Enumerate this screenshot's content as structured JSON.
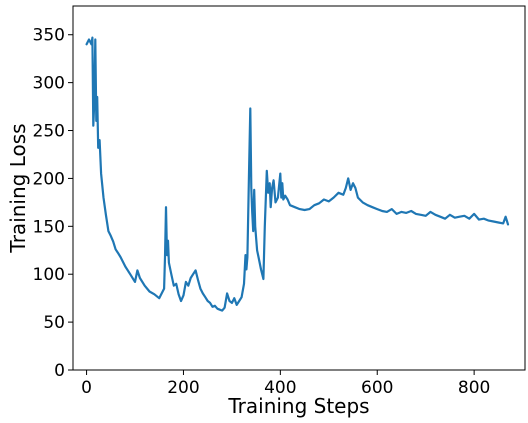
{
  "chart_data": {
    "type": "line",
    "title": "",
    "xlabel": "Training Steps",
    "ylabel": "Training Loss",
    "xlim": [
      -28,
      905
    ],
    "ylim": [
      0,
      380
    ],
    "xticks": [
      0,
      200,
      400,
      600,
      800
    ],
    "yticks": [
      0,
      50,
      100,
      150,
      200,
      250,
      300,
      350
    ],
    "grid": false,
    "legend": "none",
    "series": [
      {
        "color": "#1f77b4",
        "x": [
          0,
          5,
          10,
          12,
          14,
          16,
          18,
          20,
          22,
          24,
          27,
          30,
          35,
          40,
          45,
          50,
          55,
          60,
          65,
          70,
          80,
          90,
          100,
          105,
          110,
          120,
          130,
          140,
          150,
          160,
          162,
          164,
          166,
          168,
          170,
          175,
          180,
          185,
          190,
          195,
          200,
          205,
          210,
          215,
          220,
          225,
          230,
          235,
          240,
          245,
          250,
          255,
          260,
          265,
          270,
          275,
          280,
          285,
          290,
          295,
          300,
          305,
          310,
          315,
          320,
          325,
          328,
          330,
          332,
          335,
          338,
          340,
          342,
          344,
          346,
          348,
          350,
          352,
          355,
          360,
          365,
          368,
          372,
          375,
          378,
          380,
          383,
          386,
          390,
          395,
          400,
          402,
          404,
          406,
          410,
          415,
          420,
          430,
          440,
          450,
          460,
          470,
          480,
          490,
          500,
          510,
          520,
          530,
          535,
          540,
          545,
          550,
          555,
          560,
          570,
          580,
          590,
          600,
          610,
          620,
          630,
          640,
          650,
          660,
          670,
          680,
          690,
          700,
          710,
          720,
          730,
          740,
          750,
          760,
          770,
          780,
          790,
          800,
          810,
          820,
          830,
          840,
          850,
          860,
          865,
          870
        ],
        "y": [
          340,
          345,
          340,
          347,
          255,
          280,
          345,
          260,
          285,
          232,
          240,
          205,
          180,
          162,
          145,
          140,
          134,
          126,
          122,
          118,
          108,
          100,
          92,
          104,
          96,
          88,
          82,
          79,
          75,
          85,
          118,
          170,
          120,
          135,
          112,
          100,
          88,
          90,
          79,
          72,
          78,
          92,
          88,
          96,
          100,
          104,
          94,
          85,
          80,
          76,
          72,
          70,
          66,
          67,
          64,
          63,
          62,
          65,
          80,
          72,
          70,
          75,
          68,
          72,
          76,
          90,
          120,
          105,
          118,
          200,
          273,
          190,
          165,
          145,
          188,
          150,
          138,
          125,
          118,
          105,
          95,
          150,
          208,
          185,
          195,
          170,
          190,
          198,
          175,
          180,
          205,
          180,
          195,
          178,
          182,
          178,
          172,
          170,
          168,
          167,
          168,
          172,
          174,
          178,
          176,
          180,
          185,
          183,
          190,
          200,
          188,
          195,
          190,
          180,
          175,
          172,
          170,
          168,
          166,
          165,
          168,
          163,
          165,
          164,
          166,
          163,
          162,
          161,
          165,
          162,
          160,
          158,
          162,
          159,
          160,
          161,
          158,
          163,
          157,
          158,
          156,
          155,
          154,
          153,
          160,
          152
        ]
      }
    ]
  }
}
